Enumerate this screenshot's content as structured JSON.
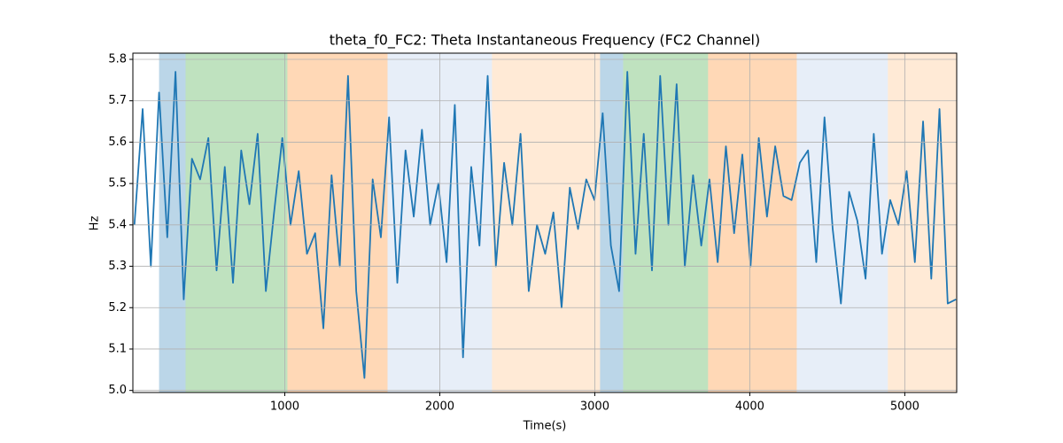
{
  "chart_data": {
    "type": "line",
    "title": "theta_f0_FC2: Theta Instantaneous Frequency (FC2 Channel)",
    "x_label": "Time(s)",
    "y_label": "Hz",
    "xlim": [
      20,
      5335
    ],
    "ylim": [
      4.995,
      5.815
    ],
    "xticks": [
      1000,
      2000,
      3000,
      4000,
      5000
    ],
    "yticks": [
      {
        "value": 5,
        "label": "5.0"
      },
      5.1,
      5.2,
      5.3,
      5.4,
      5.5,
      5.6,
      5.7,
      5.8
    ],
    "grid": true,
    "spans": [
      {
        "x0": 189,
        "x1": 360,
        "color": "#1f77b4"
      },
      {
        "x0": 360,
        "x1": 1017,
        "color": "#2ca02c"
      },
      {
        "x0": 1017,
        "x1": 1663,
        "color": "#ff7f0e"
      },
      {
        "x0": 1663,
        "x1": 2337,
        "color": "#aec7e8"
      },
      {
        "x0": 2337,
        "x1": 3034,
        "color": "#ffbb78"
      },
      {
        "x0": 3034,
        "x1": 3183,
        "color": "#1f77b4"
      },
      {
        "x0": 3183,
        "x1": 3731,
        "color": "#2ca02c"
      },
      {
        "x0": 3731,
        "x1": 4303,
        "color": "#ff7f0e"
      },
      {
        "x0": 4303,
        "x1": 4891,
        "color": "#aec7e8"
      },
      {
        "x0": 4891,
        "x1": 5335,
        "color": "#ffbb78"
      }
    ],
    "x": [
      30,
      83,
      136,
      189,
      242,
      295,
      348,
      401,
      454,
      507,
      560,
      613,
      666,
      719,
      772,
      825,
      878,
      931,
      984,
      1037,
      1090,
      1143,
      1196,
      1249,
      1302,
      1355,
      1408,
      1461,
      1514,
      1567,
      1620,
      1673,
      1726,
      1779,
      1832,
      1885,
      1938,
      1991,
      2044,
      2097,
      2150,
      2203,
      2256,
      2309,
      2362,
      2415,
      2468,
      2521,
      2574,
      2627,
      2680,
      2733,
      2786,
      2839,
      2892,
      2945,
      2998,
      3051,
      3104,
      3157,
      3210,
      3263,
      3316,
      3369,
      3422,
      3475,
      3528,
      3581,
      3634,
      3687,
      3740,
      3793,
      3846,
      3899,
      3952,
      4005,
      4058,
      4111,
      4164,
      4217,
      4270,
      4323,
      4376,
      4429,
      4482,
      4535,
      4588,
      4641,
      4694,
      4747,
      4800,
      4853,
      4906,
      4959,
      5012,
      5065,
      5118,
      5171,
      5224,
      5277,
      5330
    ],
    "series": [
      {
        "color": "#1f77b4",
        "values": [
          5.4,
          5.68,
          5.3,
          5.72,
          5.37,
          5.77,
          5.22,
          5.56,
          5.51,
          5.61,
          5.29,
          5.54,
          5.26,
          5.58,
          5.45,
          5.62,
          5.24,
          5.43,
          5.61,
          5.4,
          5.53,
          5.33,
          5.38,
          5.15,
          5.52,
          5.3,
          5.76,
          5.24,
          5.03,
          5.51,
          5.37,
          5.66,
          5.26,
          5.58,
          5.42,
          5.63,
          5.4,
          5.5,
          5.31,
          5.69,
          5.08,
          5.54,
          5.35,
          5.76,
          5.3,
          5.55,
          5.4,
          5.62,
          5.24,
          5.4,
          5.33,
          5.43,
          5.2,
          5.49,
          5.39,
          5.51,
          5.46,
          5.67,
          5.35,
          5.24,
          5.77,
          5.33,
          5.62,
          5.29,
          5.76,
          5.4,
          5.74,
          5.3,
          5.52,
          5.35,
          5.51,
          5.31,
          5.59,
          5.38,
          5.57,
          5.3,
          5.61,
          5.42,
          5.59,
          5.47,
          5.46,
          5.55,
          5.58,
          5.31,
          5.66,
          5.39,
          5.21,
          5.48,
          5.41,
          5.27,
          5.62,
          5.33,
          5.46,
          5.4,
          5.53,
          5.31,
          5.65,
          5.27,
          5.68,
          5.21,
          5.22
        ]
      }
    ]
  }
}
